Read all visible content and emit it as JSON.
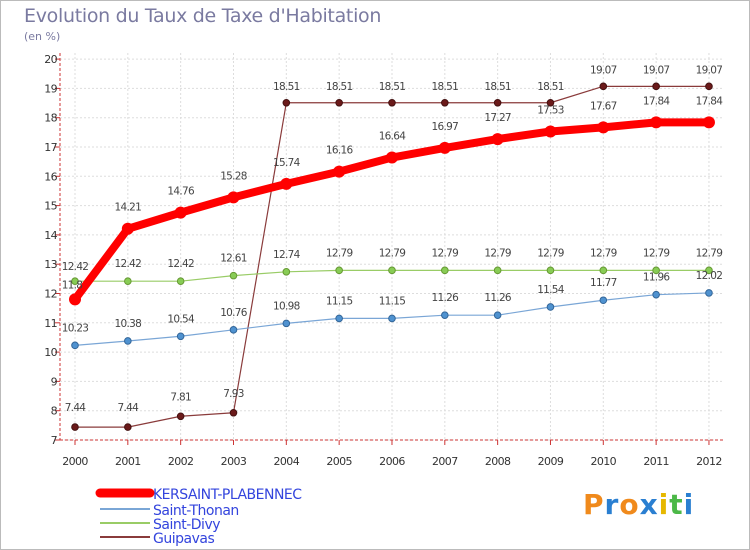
{
  "title": "Evolution du Taux de Taxe d'Habitation",
  "subtitle": "(en %)",
  "logo": {
    "text": "Proxiti",
    "colors": [
      "#f08a1c",
      "#2a7fd1",
      "#f08a1c",
      "#2a7fd1",
      "#e6b800",
      "#4cb848",
      "#2a7fd1"
    ]
  },
  "chart_data": {
    "type": "line",
    "title": "Evolution du Taux de Taxe d'Habitation",
    "ylabel": "(en %)",
    "x": [
      "2000",
      "2001",
      "2002",
      "2003",
      "2004",
      "2005",
      "2006",
      "2007",
      "2008",
      "2009",
      "2010",
      "2011",
      "2012"
    ],
    "ylim": [
      7,
      20
    ],
    "yticks": [
      7,
      8,
      9,
      10,
      11,
      12,
      13,
      14,
      15,
      16,
      17,
      18,
      19,
      20
    ],
    "grid": true,
    "legend_position": "bottom-left",
    "series": [
      {
        "name": "KERSAINT-PLABENNEC",
        "color": "#ff0000",
        "values": [
          11.8,
          14.21,
          14.76,
          15.28,
          15.74,
          16.16,
          16.64,
          16.97,
          17.27,
          17.53,
          17.67,
          17.84,
          17.84
        ],
        "labels": [
          "11.8",
          "14.21",
          "14.76",
          "15.28",
          "15.74",
          "16.16",
          "16.64",
          "16.97",
          "17.27",
          "17.53",
          "17.67",
          "17.84",
          "17.84"
        ]
      },
      {
        "name": "Saint-Thonan",
        "color": "#6699cc",
        "values": [
          10.23,
          10.38,
          10.54,
          10.76,
          10.98,
          11.15,
          11.15,
          11.26,
          11.26,
          11.54,
          11.77,
          11.96,
          12.02
        ],
        "labels": [
          "10.23",
          "10.38",
          "10.54",
          "10.76",
          "10.98",
          "11.15",
          "11.15",
          "11.26",
          "11.26",
          "11.54",
          "11.77",
          "11.96",
          "12.02"
        ]
      },
      {
        "name": "Saint-Divy",
        "color": "#99cc66",
        "values": [
          12.42,
          12.42,
          12.42,
          12.61,
          12.74,
          12.79,
          12.79,
          12.79,
          12.79,
          12.79,
          12.79,
          12.79,
          12.79
        ],
        "labels": [
          "12.42",
          "12.42",
          "12.42",
          "12.61",
          "12.74",
          "12.79",
          "12.79",
          "12.79",
          "12.79",
          "12.79",
          "12.79",
          "12.79",
          "12.79"
        ]
      },
      {
        "name": "Guipavas",
        "color": "#996666",
        "values": [
          7.44,
          7.44,
          7.81,
          7.93,
          18.51,
          18.51,
          18.51,
          18.51,
          18.51,
          18.51,
          19.07,
          19.07,
          19.07
        ],
        "labels": [
          "7.44",
          "7.44",
          "7.81",
          "7.93",
          "18.51",
          "18.51",
          "18.51",
          "18.51",
          "18.51",
          "18.51",
          "19.07",
          "19.07",
          "19.07"
        ]
      }
    ]
  }
}
